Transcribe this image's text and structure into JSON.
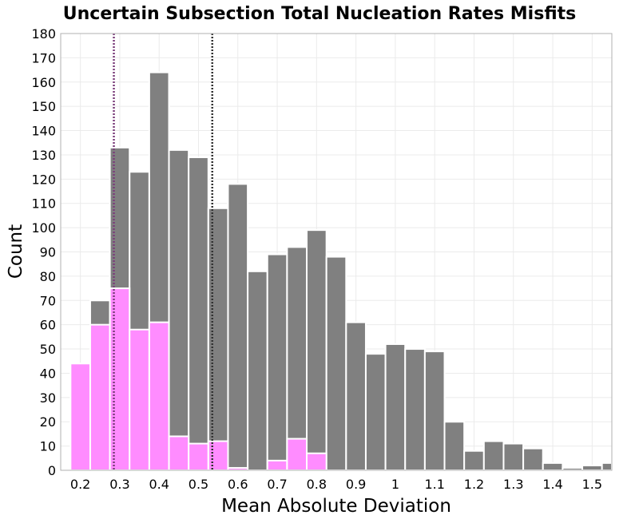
{
  "chart_data": {
    "type": "bar",
    "title": "Uncertain Subsection Total Nucleation Rates Misfits",
    "xlabel": "Mean Absolute Deviation",
    "ylabel": "Count",
    "xlim": [
      0.15,
      1.55
    ],
    "ylim": [
      0,
      180
    ],
    "bin_width": 0.05,
    "x_ticks": [
      "0.2",
      "0.3",
      "0.4",
      "0.5",
      "0.6",
      "0.7",
      "0.8",
      "0.9",
      "1",
      "1.1",
      "1.2",
      "1.3",
      "1.4",
      "1.5"
    ],
    "x_tick_values": [
      0.2,
      0.3,
      0.4,
      0.5,
      0.6,
      0.7,
      0.8,
      0.9,
      1.0,
      1.1,
      1.2,
      1.3,
      1.4,
      1.5
    ],
    "y_ticks": [
      0,
      10,
      20,
      30,
      40,
      50,
      60,
      70,
      80,
      90,
      100,
      110,
      120,
      130,
      140,
      150,
      160,
      170,
      180
    ],
    "grid": true,
    "stacked": false,
    "bin_centers": [
      0.2,
      0.25,
      0.3,
      0.35,
      0.4,
      0.45,
      0.5,
      0.55,
      0.6,
      0.65,
      0.7,
      0.75,
      0.8,
      0.85,
      0.9,
      0.95,
      1.0,
      1.05,
      1.1,
      1.15,
      1.2,
      1.25,
      1.3,
      1.35,
      1.4,
      1.45,
      1.5,
      1.55
    ],
    "series": [
      {
        "color": "#808080",
        "values": [
          44,
          70,
          133,
          123,
          164,
          132,
          129,
          108,
          118,
          82,
          89,
          92,
          99,
          88,
          61,
          48,
          52,
          50,
          49,
          20,
          8,
          12,
          11,
          9,
          3,
          1,
          2,
          3
        ]
      },
      {
        "color": "#ff8cff",
        "values": [
          44,
          60,
          75,
          58,
          61,
          14,
          11,
          12,
          1,
          0,
          4,
          13,
          7,
          0,
          0,
          0,
          0,
          0,
          0,
          0,
          0,
          0,
          0,
          0,
          0,
          0,
          0,
          0
        ]
      }
    ],
    "vertical_lines": [
      {
        "x": 0.285,
        "color": "#7a3d7a"
      },
      {
        "x": 0.535,
        "color": "#333333"
      }
    ]
  }
}
